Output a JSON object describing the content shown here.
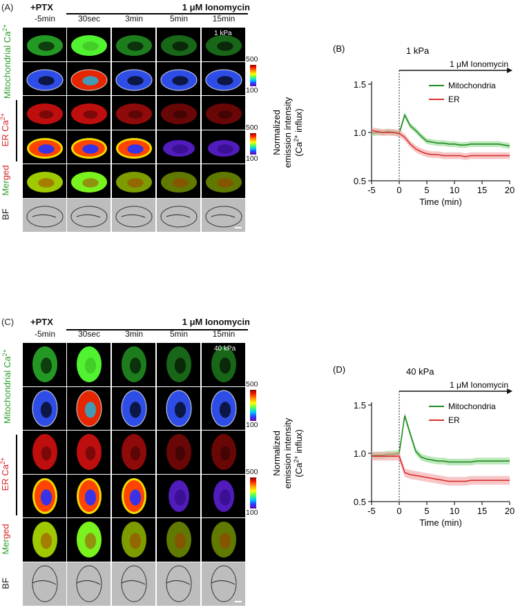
{
  "panels": {
    "A": {
      "label": "(A)",
      "treatment": "+PTX",
      "stimulus": "1 μM Ionomycin",
      "stiffness": "1 kPa",
      "times": [
        "-5min",
        "30sec",
        "3min",
        "5min",
        "15min"
      ],
      "row_labels": {
        "mito": "Mitochondrial Ca",
        "er": "ER Ca",
        "merged": "Merged",
        "bf": "BF"
      },
      "colorbar_max": "500",
      "colorbar_min": "100"
    },
    "C": {
      "label": "(C)",
      "treatment": "+PTX",
      "stimulus": "1 μM Ionomycin",
      "stiffness": "40 kPa",
      "times": [
        "-5min",
        "30sec",
        "3min",
        "5min",
        "15min"
      ],
      "row_labels": {
        "mito": "Mitochondrial Ca",
        "er": "ER Ca",
        "merged": "Merged",
        "bf": "BF"
      },
      "colorbar_max": "500",
      "colorbar_min": "100"
    }
  },
  "superscript": "2+",
  "colors": {
    "mito": "#2e9e2e",
    "er": "#d62728",
    "mito_line": "#1f8a1f",
    "er_line": "#d93030"
  },
  "chart_data": [
    {
      "panel_label": "(B)",
      "type": "line",
      "title": "1 kPa",
      "xlabel": "Time (min)",
      "ylabel_line1": "Normalized",
      "ylabel_line2": "emission intensity",
      "ylabel_line3": "(Ca",
      "ylabel_line3_sup": "2+",
      "ylabel_line3_end": " influx)",
      "xlim": [
        -5,
        20
      ],
      "ylim": [
        0.5,
        1.5
      ],
      "xticks": [
        -5,
        0,
        5,
        10,
        15,
        20
      ],
      "yticks": [
        "0.5",
        "1.0",
        "1.5"
      ],
      "stimulus_label": "1 μM Ionomycin",
      "legend": [
        "Mitochondria",
        "ER"
      ],
      "x": [
        -5,
        -4,
        -3,
        -2,
        -1,
        0,
        1,
        2,
        3,
        4,
        5,
        6,
        7,
        8,
        9,
        10,
        11,
        12,
        13,
        14,
        15,
        16,
        17,
        18,
        19,
        20
      ],
      "series": [
        {
          "name": "Mitochondria",
          "values": [
            0.99,
            1.0,
            1.0,
            1.01,
            1.0,
            0.99,
            1.18,
            1.07,
            1.02,
            0.96,
            0.91,
            0.9,
            0.89,
            0.89,
            0.88,
            0.88,
            0.87,
            0.87,
            0.88,
            0.88,
            0.88,
            0.88,
            0.88,
            0.88,
            0.87,
            0.86
          ],
          "err": 0.03
        },
        {
          "name": "ER",
          "values": [
            1.02,
            1.01,
            1.0,
            1.0,
            1.0,
            0.99,
            0.95,
            0.88,
            0.83,
            0.8,
            0.78,
            0.77,
            0.77,
            0.76,
            0.76,
            0.76,
            0.76,
            0.75,
            0.76,
            0.76,
            0.76,
            0.76,
            0.76,
            0.76,
            0.76,
            0.76
          ],
          "err": 0.035
        }
      ]
    },
    {
      "panel_label": "(D)",
      "type": "line",
      "title": "40 kPa",
      "xlabel": "Time (min)",
      "ylabel_line1": "Normalized",
      "ylabel_line2": "emission intensity",
      "ylabel_line3": "(Ca",
      "ylabel_line3_sup": "2+",
      "ylabel_line3_end": " influx)",
      "xlim": [
        -5,
        20
      ],
      "ylim": [
        0.5,
        1.5
      ],
      "xticks": [
        -5,
        0,
        5,
        10,
        15,
        20
      ],
      "yticks": [
        "0.5",
        "1.0",
        "1.5"
      ],
      "stimulus_label": "1 μM Ionomycin",
      "legend": [
        "Mitochondria",
        "ER"
      ],
      "x": [
        -5,
        -4,
        -3,
        -2,
        -1,
        0,
        1,
        2,
        3,
        4,
        5,
        6,
        7,
        8,
        9,
        10,
        11,
        12,
        13,
        14,
        15,
        16,
        17,
        18,
        19,
        20
      ],
      "series": [
        {
          "name": "Mitochondria",
          "values": [
            0.98,
            0.98,
            0.98,
            0.99,
            0.99,
            1.0,
            1.39,
            1.2,
            1.02,
            0.96,
            0.94,
            0.93,
            0.92,
            0.92,
            0.91,
            0.91,
            0.91,
            0.91,
            0.91,
            0.92,
            0.92,
            0.92,
            0.92,
            0.92,
            0.92,
            0.92
          ],
          "err": 0.035
        },
        {
          "name": "ER",
          "values": [
            0.97,
            0.97,
            0.97,
            0.97,
            0.97,
            0.97,
            0.8,
            0.78,
            0.77,
            0.76,
            0.75,
            0.74,
            0.73,
            0.72,
            0.71,
            0.71,
            0.71,
            0.71,
            0.72,
            0.72,
            0.72,
            0.72,
            0.72,
            0.72,
            0.72,
            0.72
          ],
          "err": 0.045
        }
      ]
    }
  ]
}
